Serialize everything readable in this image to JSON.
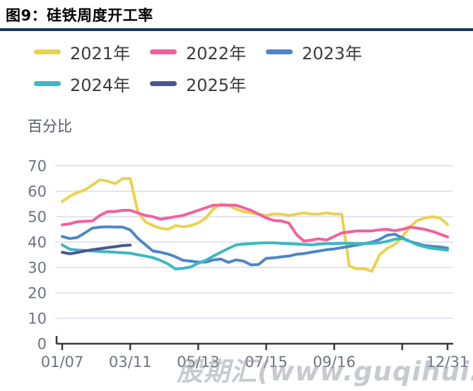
{
  "figure": {
    "title": "图9：硅铁周度开工率",
    "accent_rule_color": "#17365d"
  },
  "watermark": {
    "text": "股期汇(www.guqihui.cn)"
  },
  "chart_data": {
    "type": "line",
    "title": "硅铁周度开工率",
    "ylabel": "百分比",
    "ylim": [
      0,
      70
    ],
    "yticks": [
      0,
      10,
      20,
      30,
      40,
      50,
      60,
      70
    ],
    "grid": true,
    "legend_position": "top-left",
    "x_unit": "week-of-year",
    "weeks": 52,
    "xticks": [
      {
        "week": 1,
        "label": "01/07"
      },
      {
        "week": 10,
        "label": "03/11"
      },
      {
        "week": 19,
        "label": "05/13"
      },
      {
        "week": 28,
        "label": "07/15"
      },
      {
        "week": 37,
        "label": "09/16"
      },
      {
        "week": 46,
        "label": ""
      },
      {
        "week": 52,
        "label": "12/31"
      }
    ],
    "series": [
      {
        "name": "2021年",
        "color": "#ecd14f",
        "values": [
          56,
          58,
          59.5,
          60.5,
          62.5,
          64.5,
          64,
          63,
          65,
          65,
          52,
          48,
          46.5,
          45.5,
          45,
          46.5,
          46,
          46.5,
          47.5,
          49.5,
          53,
          55,
          54.5,
          53,
          52,
          51.5,
          51,
          50.5,
          51,
          51,
          50.5,
          51,
          51.5,
          51,
          51,
          51.5,
          51,
          51,
          30.5,
          29.5,
          29.5,
          28.5,
          35,
          37.5,
          39,
          42,
          46,
          48.5,
          49.5,
          50,
          49.5,
          47
        ]
      },
      {
        "name": "2022年",
        "color": "#f2609e",
        "values": [
          46.8,
          47.2,
          48,
          48.2,
          48.3,
          50.5,
          52,
          52,
          52.5,
          52.5,
          51.5,
          50.5,
          50,
          49,
          49.5,
          50,
          50.5,
          51.5,
          52.5,
          53.5,
          54.5,
          54.5,
          54.5,
          54.5,
          53.5,
          52.5,
          51,
          49.5,
          48.5,
          48.3,
          47.5,
          43,
          40.4,
          40.8,
          41.3,
          40.8,
          42.2,
          43.6,
          44,
          44.4,
          44.4,
          44.4,
          44.8,
          45,
          44.5,
          45,
          45.9,
          45.5,
          45,
          44.2,
          43.1,
          42
        ]
      },
      {
        "name": "2023年",
        "color": "#4e86c6",
        "values": [
          42.2,
          41.4,
          41.8,
          43.6,
          45.5,
          45.9,
          46,
          45.9,
          45.9,
          44.8,
          41.5,
          39,
          36.5,
          36,
          35.3,
          34.2,
          32.8,
          32.5,
          32.1,
          32.1,
          33,
          33.3,
          32,
          33,
          32.5,
          31,
          31.2,
          33.6,
          33.8,
          34.2,
          34.5,
          35.2,
          35.5,
          36,
          36.5,
          37,
          37.3,
          37.8,
          38.3,
          38.8,
          39.4,
          40,
          41,
          42.7,
          43.1,
          41.7,
          40.3,
          39.4,
          38.6,
          38.3,
          38.1,
          37.6
        ]
      },
      {
        "name": "2024年",
        "color": "#3cb8c0",
        "values": [
          38.9,
          37.2,
          36.9,
          36.7,
          36.5,
          36.3,
          36.2,
          36,
          35.8,
          35.6,
          35,
          34.5,
          33.9,
          32.8,
          31.4,
          29.4,
          29.7,
          30.2,
          31.7,
          32.8,
          34.5,
          36,
          37.5,
          38.9,
          39.2,
          39.4,
          39.6,
          39.7,
          39.7,
          39.5,
          39.4,
          39.2,
          39.1,
          38.9,
          39.2,
          39.4,
          39.4,
          39.5,
          39.5,
          39.4,
          39.4,
          39.5,
          39.7,
          40.3,
          41.1,
          41.4,
          40.3,
          38.9,
          38.1,
          37.5,
          37.2,
          36.8
        ]
      },
      {
        "name": "2025年",
        "color": "#4a5693",
        "values": [
          36,
          35.4,
          35.9,
          36.5,
          37,
          37.4,
          37.8,
          38.2,
          38.6,
          38.8
        ]
      }
    ],
    "style": {
      "grid_color": "#d3d8e3",
      "axis_color": "#3a3a3a",
      "tick_label_color": "#70737f",
      "line_width": 4
    }
  }
}
